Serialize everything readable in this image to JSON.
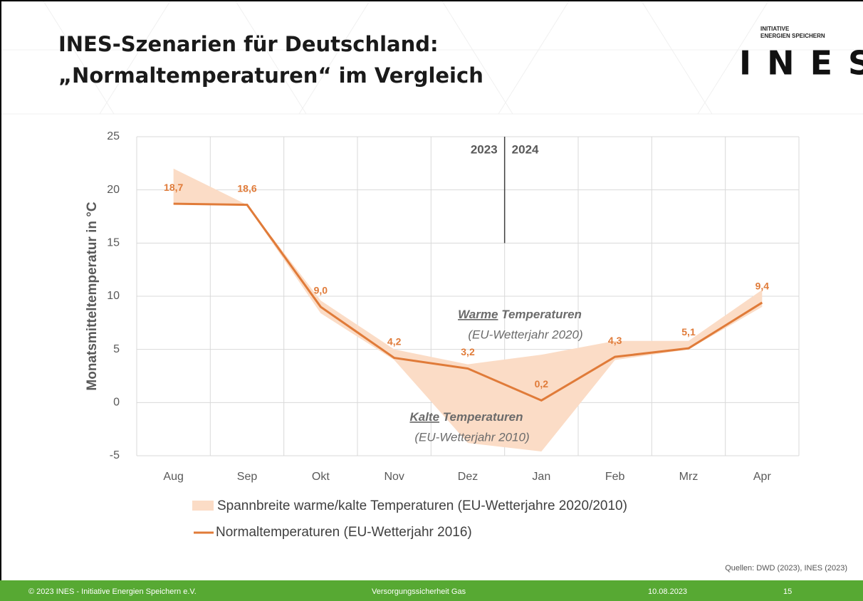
{
  "slide": {
    "title_lines": [
      "INES-Szenarien für Deutschland:",
      "„Normaltemperaturen“ im Vergleich"
    ],
    "logo": {
      "small_lines": [
        "INITIATIVE",
        "ENERGIEN SPEICHERN"
      ],
      "name": "INES"
    },
    "source": "Quellen: DWD (2023), INES (2023)",
    "footer": [
      "© 2023 INES  - Initiative Energien Speichern e.V.",
      "Versorgungssicherheit Gas",
      "10.08.2023",
      "15"
    ]
  },
  "chart_data": {
    "type": "line",
    "y_label": "Monatsmitteltemperatur in °C",
    "categories": [
      "Aug",
      "Sep",
      "Okt",
      "Nov",
      "Dez",
      "Jan",
      "Feb",
      "Mrz",
      "Apr"
    ],
    "ylim": [
      -5,
      25
    ],
    "yticks": [
      -5,
      0,
      5,
      10,
      15,
      20,
      25
    ],
    "grid": true,
    "band": {
      "name": "Spannbreite warme/kalte Temperaturen (EU-Wetterjahre 2020/2010)",
      "color": "#fbdcc6",
      "high": [
        22,
        18.6,
        9.6,
        5,
        3.6,
        4.5,
        5.8,
        5.8,
        10.6
      ],
      "low": [
        18.7,
        18.5,
        8.4,
        4,
        -3.8,
        -4.6,
        4,
        5,
        9
      ]
    },
    "series": [
      {
        "name": "Normaltemperaturen (EU-Wetterjahr 2016)",
        "color": "#e07b39",
        "values": [
          18.7,
          18.6,
          9.0,
          4.2,
          3.2,
          0.2,
          4.3,
          5.1,
          9.4
        ],
        "value_labels": [
          "18,7",
          "18,6",
          "9,0",
          "4,2",
          "3,2",
          "0,2",
          "4,3",
          "5,1",
          "9,4"
        ]
      }
    ],
    "year_labels": [
      "2023",
      "2024"
    ],
    "annotations": [
      {
        "emphasis": "Warme",
        "text": "Temperaturen",
        "note": "(EU-Wetterjahr 2020)"
      },
      {
        "emphasis": "Kalte",
        "text": "Temperaturen",
        "note": "(EU-Wetterjahr 2010)"
      }
    ]
  }
}
